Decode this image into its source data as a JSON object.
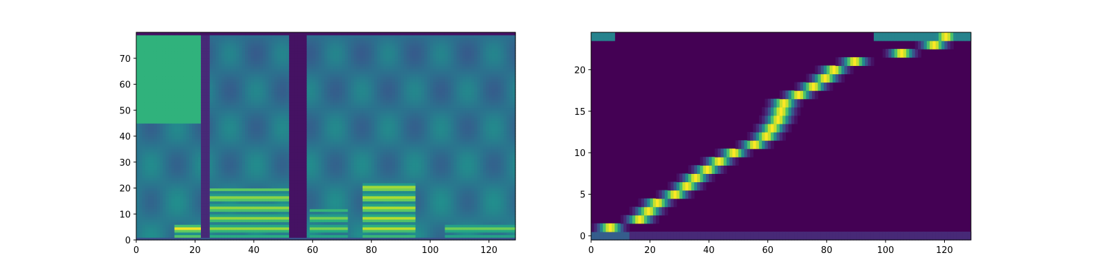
{
  "chart_data": [
    {
      "type": "heatmap",
      "colormap": "viridis",
      "xlim": [
        0,
        129
      ],
      "ylim": [
        0,
        80
      ],
      "xticks": [
        0,
        20,
        40,
        60,
        80,
        100,
        120
      ],
      "yticks": [
        0,
        10,
        20,
        30,
        40,
        50,
        60,
        70
      ],
      "xtick_labels": [
        "0",
        "20",
        "40",
        "60",
        "80",
        "100",
        "120"
      ],
      "ytick_labels": [
        "0",
        "10",
        "20",
        "30",
        "40",
        "50",
        "60",
        "70"
      ],
      "bright_regions": [
        {
          "x": [
            0,
            22
          ],
          "y": [
            45,
            80
          ],
          "value": 0.65
        },
        {
          "x": [
            13,
            22
          ],
          "y": [
            1,
            6
          ],
          "value": 0.98
        },
        {
          "x": [
            25,
            52
          ],
          "y": [
            1,
            20
          ],
          "value": 0.85
        },
        {
          "x": [
            59,
            72
          ],
          "y": [
            1,
            12
          ],
          "value": 0.8
        },
        {
          "x": [
            77,
            95
          ],
          "y": [
            1,
            22
          ],
          "value": 0.9
        },
        {
          "x": [
            105,
            129
          ],
          "y": [
            1,
            6
          ],
          "value": 0.78
        }
      ],
      "dark_regions": [
        {
          "x": [
            22,
            25
          ],
          "y": [
            0,
            80
          ],
          "value": 0.12
        },
        {
          "x": [
            52,
            58
          ],
          "y": [
            0,
            80
          ],
          "value": 0.05
        }
      ]
    },
    {
      "type": "heatmap",
      "colormap": "viridis",
      "xlim": [
        0,
        129
      ],
      "ylim": [
        -0.5,
        24.5
      ],
      "xticks": [
        0,
        20,
        40,
        60,
        80,
        100,
        120
      ],
      "yticks": [
        0,
        5,
        10,
        15,
        20
      ],
      "xtick_labels": [
        "0",
        "20",
        "40",
        "60",
        "80",
        "100",
        "120"
      ],
      "ytick_labels": [
        "0",
        "5",
        "10",
        "15",
        "20"
      ],
      "alignment_path": [
        {
          "row": 1,
          "x": 6
        },
        {
          "row": 2,
          "x": 16
        },
        {
          "row": 3,
          "x": 19
        },
        {
          "row": 4,
          "x": 22
        },
        {
          "row": 5,
          "x": 28
        },
        {
          "row": 6,
          "x": 32
        },
        {
          "row": 7,
          "x": 35
        },
        {
          "row": 8,
          "x": 39
        },
        {
          "row": 9,
          "x": 43
        },
        {
          "row": 10,
          "x": 48
        },
        {
          "row": 11,
          "x": 55
        },
        {
          "row": 12,
          "x": 59
        },
        {
          "row": 13,
          "x": 61
        },
        {
          "row": 14,
          "x": 63
        },
        {
          "row": 15,
          "x": 64
        },
        {
          "row": 16,
          "x": 65
        },
        {
          "row": 17,
          "x": 70
        },
        {
          "row": 18,
          "x": 75
        },
        {
          "row": 19,
          "x": 79
        },
        {
          "row": 20,
          "x": 82
        },
        {
          "row": 21,
          "x": 89
        },
        {
          "row": 22,
          "x": 105
        },
        {
          "row": 23,
          "x": 116
        },
        {
          "row": 24,
          "x": 120
        }
      ],
      "background_value": 0.02
    }
  ]
}
